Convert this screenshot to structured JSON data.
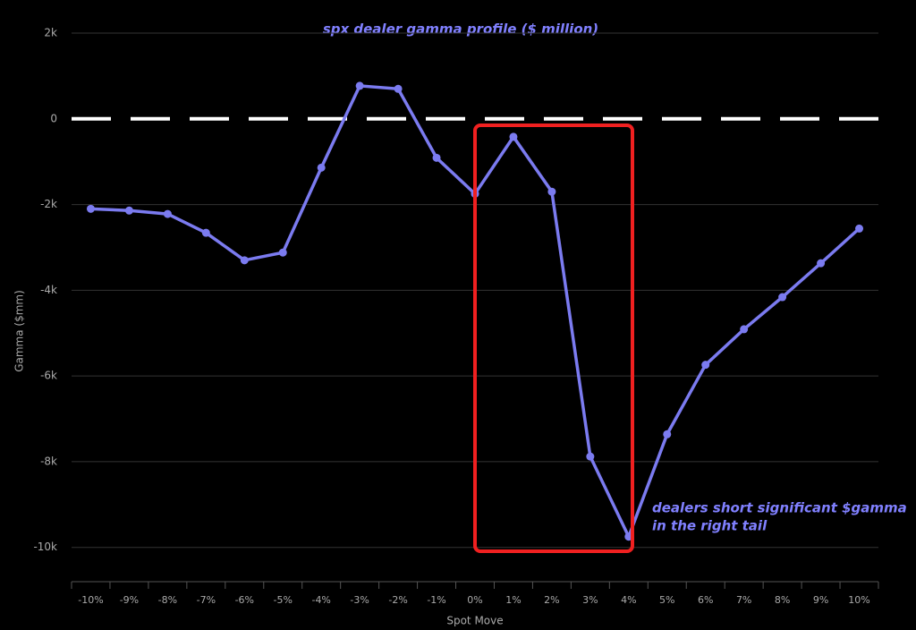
{
  "chart_data": {
    "type": "line",
    "title": "spx dealer gamma profile ($ million)",
    "x_label": "Spot Move",
    "y_label": "Gamma ($mm)",
    "annotation": [
      "dealers short significant $gamma",
      "in the right tail"
    ],
    "categories": [
      "-10%",
      "-9%",
      "-8%",
      "-7%",
      "-6%",
      "-5%",
      "-4%",
      "-3%",
      "-2%",
      "-1%",
      "0%",
      "1%",
      "2%",
      "3%",
      "4%",
      "5%",
      "6%",
      "7%",
      "8%",
      "9%",
      "10%"
    ],
    "series": [
      {
        "name": "Gamma",
        "color": "#7b7bf0",
        "values": [
          -2100,
          -2140,
          -2220,
          -2660,
          -3300,
          -3120,
          -1140,
          770,
          700,
          -910,
          -1750,
          -420,
          -1700,
          -7880,
          -9750,
          -7360,
          -5740,
          -4910,
          -4160,
          -3370,
          -2560
        ]
      }
    ],
    "ylim": [
      -10800,
      2000
    ],
    "yticks": [
      {
        "value": 2000,
        "label": "2k"
      },
      {
        "value": 0,
        "label": "0"
      },
      {
        "value": -2000,
        "label": "-2k"
      },
      {
        "value": -4000,
        "label": "-4k"
      },
      {
        "value": -6000,
        "label": "-6k"
      },
      {
        "value": -8000,
        "label": "-8k"
      },
      {
        "value": -10000,
        "label": "-10k"
      }
    ],
    "grid": true
  }
}
